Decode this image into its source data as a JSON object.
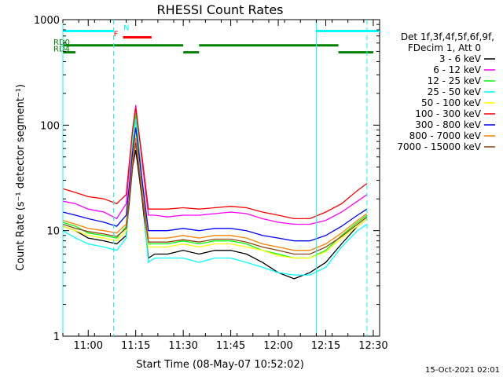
{
  "chart_data": {
    "type": "line",
    "title": "RHESSI Count Rates",
    "xlabel": "Start Time (08-May-07 10:52:02)",
    "ylabel": "Count Rate (s⁻¹ detector segment⁻¹)",
    "y_scale": "log",
    "ylim": [
      1,
      1000
    ],
    "xlim": [
      "10:52",
      "12:32"
    ],
    "x_tick_labels": [
      "11:00",
      "11:15",
      "11:30",
      "11:45",
      "12:00",
      "12:15",
      "12:30"
    ],
    "y_tick_labels": [
      "1",
      "10",
      "100",
      "1000"
    ],
    "legend_header": [
      "Det 1f,3f,4f,5f,6f,9f,",
      "FDecim 1, Att 0"
    ],
    "grid": false,
    "legend_position": "right, outside plot",
    "series": [
      {
        "name": "3 - 6 keV",
        "color": "#000000",
        "x": [
          "10:52",
          "10:56",
          "11:00",
          "11:05",
          "11:09",
          "11:12",
          "11:14",
          "11:15",
          "11:17",
          "11:19",
          "11:21",
          "11:25",
          "11:30",
          "11:35",
          "11:40",
          "11:45",
          "11:50",
          "11:55",
          "12:00",
          "12:05",
          "12:10",
          "12:15",
          "12:20",
          "12:25",
          "12:28"
        ],
        "values": [
          11,
          10,
          8.5,
          8,
          7.5,
          9,
          40,
          58,
          20,
          5.5,
          6,
          6,
          6.5,
          6,
          6.5,
          6.5,
          6,
          5,
          4,
          3.5,
          4,
          5,
          7.5,
          11,
          13
        ]
      },
      {
        "name": "6 - 12 keV",
        "color": "#ff00ff",
        "x": [
          "10:52",
          "10:56",
          "11:00",
          "11:05",
          "11:09",
          "11:12",
          "11:14",
          "11:15",
          "11:17",
          "11:19",
          "11:21",
          "11:25",
          "11:30",
          "11:35",
          "11:40",
          "11:45",
          "11:50",
          "11:55",
          "12:00",
          "12:05",
          "12:10",
          "12:15",
          "12:20",
          "12:25",
          "12:28"
        ],
        "values": [
          19,
          18,
          16,
          15,
          13,
          18,
          90,
          155,
          45,
          14,
          14,
          13.5,
          14,
          14,
          14.5,
          15,
          14.5,
          13,
          12,
          11.5,
          11.5,
          12.5,
          15,
          19,
          22
        ]
      },
      {
        "name": "12 - 25 keV",
        "color": "#00ff00",
        "x": [
          "10:52",
          "10:56",
          "11:00",
          "11:05",
          "11:09",
          "11:12",
          "11:14",
          "11:15",
          "11:17",
          "11:19",
          "11:21",
          "11:25",
          "11:30",
          "11:35",
          "11:40",
          "11:45",
          "11:50",
          "11:55",
          "12:00",
          "12:05",
          "12:10",
          "12:15",
          "12:20",
          "12:25",
          "12:28"
        ],
        "values": [
          12,
          11,
          9.5,
          9,
          8.5,
          11,
          65,
          130,
          30,
          7.5,
          7.5,
          7.5,
          8,
          7.5,
          8,
          8,
          7.5,
          6.5,
          6,
          5.5,
          5.5,
          6.5,
          9,
          12,
          14
        ]
      },
      {
        "name": "25 - 50 keV",
        "color": "#00ffff",
        "x": [
          "10:52",
          "10:56",
          "11:00",
          "11:05",
          "11:09",
          "11:12",
          "11:14",
          "11:15",
          "11:17",
          "11:19",
          "11:21",
          "11:25",
          "11:30",
          "11:35",
          "11:40",
          "11:45",
          "11:50",
          "11:55",
          "12:00",
          "12:05",
          "12:10",
          "12:15",
          "12:20",
          "12:25",
          "12:28"
        ],
        "values": [
          10,
          8.5,
          7.5,
          7,
          6.5,
          8.5,
          55,
          115,
          25,
          5,
          5.5,
          5.5,
          5.5,
          5,
          5.5,
          5.5,
          5,
          4.5,
          4,
          3.8,
          3.8,
          4.5,
          7,
          10,
          11.5
        ]
      },
      {
        "name": "50 - 100 keV",
        "color": "#ffff00",
        "x": [
          "10:52",
          "10:56",
          "11:00",
          "11:05",
          "11:09",
          "11:12",
          "11:14",
          "11:15",
          "11:17",
          "11:19",
          "11:21",
          "11:25",
          "11:30",
          "11:35",
          "11:40",
          "11:45",
          "11:50",
          "11:55",
          "12:00",
          "12:05",
          "12:10",
          "12:15",
          "12:20",
          "12:25",
          "12:28"
        ],
        "values": [
          11,
          10,
          9,
          8.5,
          8,
          10,
          45,
          80,
          22,
          7,
          7,
          7,
          7.5,
          7,
          7.5,
          7.5,
          7,
          6.5,
          5.8,
          5.5,
          5.5,
          6.3,
          8.5,
          11,
          13
        ]
      },
      {
        "name": "100 - 300 keV",
        "color": "#ff0000",
        "x": [
          "10:52",
          "10:56",
          "11:00",
          "11:05",
          "11:09",
          "11:12",
          "11:14",
          "11:15",
          "11:17",
          "11:19",
          "11:21",
          "11:25",
          "11:30",
          "11:35",
          "11:40",
          "11:45",
          "11:50",
          "11:55",
          "12:00",
          "12:05",
          "12:10",
          "12:15",
          "12:20",
          "12:25",
          "12:28"
        ],
        "values": [
          25,
          23,
          21,
          20,
          18,
          22,
          90,
          145,
          50,
          16,
          16,
          16,
          16.5,
          16,
          16.5,
          17,
          16.5,
          15,
          14,
          13,
          13,
          15,
          18,
          24,
          28
        ]
      },
      {
        "name": "300 - 800 keV",
        "color": "#0000ff",
        "x": [
          "10:52",
          "10:56",
          "11:00",
          "11:05",
          "11:09",
          "11:12",
          "11:14",
          "11:15",
          "11:17",
          "11:19",
          "11:21",
          "11:25",
          "11:30",
          "11:35",
          "11:40",
          "11:45",
          "11:50",
          "11:55",
          "12:00",
          "12:05",
          "12:10",
          "12:15",
          "12:20",
          "12:25",
          "12:28"
        ],
        "values": [
          15,
          14,
          13,
          12,
          11,
          14,
          55,
          95,
          30,
          10,
          10,
          10,
          10.5,
          10,
          10.5,
          10.5,
          10,
          9,
          8.5,
          8,
          8,
          9,
          11,
          14,
          16
        ]
      },
      {
        "name": "800 - 7000 keV",
        "color": "#ff8000",
        "x": [
          "10:52",
          "10:56",
          "11:00",
          "11:05",
          "11:09",
          "11:12",
          "11:14",
          "11:15",
          "11:17",
          "11:19",
          "11:21",
          "11:25",
          "11:30",
          "11:35",
          "11:40",
          "11:45",
          "11:50",
          "11:55",
          "12:00",
          "12:05",
          "12:10",
          "12:15",
          "12:20",
          "12:25",
          "12:28"
        ],
        "values": [
          12.5,
          11.5,
          10.5,
          10,
          9.5,
          11.5,
          45,
          75,
          24,
          8.5,
          8.5,
          8.5,
          9,
          8.5,
          9,
          9,
          8.5,
          7.5,
          7,
          6.5,
          6.5,
          7.5,
          9.5,
          12.5,
          14.5
        ]
      },
      {
        "name": "7000 - 15000 keV",
        "color": "#8b4513",
        "x": [
          "10:52",
          "10:56",
          "11:00",
          "11:05",
          "11:09",
          "11:12",
          "11:14",
          "11:15",
          "11:17",
          "11:19",
          "11:21",
          "11:25",
          "11:30",
          "11:35",
          "11:40",
          "11:45",
          "11:50",
          "11:55",
          "12:00",
          "12:05",
          "12:10",
          "12:15",
          "12:20",
          "12:25",
          "12:28"
        ],
        "values": [
          11.5,
          10.5,
          9.8,
          9.3,
          8.8,
          10.5,
          40,
          68,
          21,
          7.8,
          7.8,
          7.8,
          8.2,
          7.8,
          8.3,
          8.3,
          7.8,
          7,
          6.5,
          6,
          6,
          7,
          8.8,
          11.5,
          13.5
        ]
      }
    ],
    "state_bars": [
      {
        "label": "N",
        "color": "#00ffff",
        "level": 780,
        "segments": [
          [
            "10:52",
            "11:08"
          ],
          [
            "12:12",
            "12:32"
          ]
        ]
      },
      {
        "label": "F",
        "color": "#ff0000",
        "level": 680,
        "segments": [
          [
            "11:11",
            "11:20"
          ]
        ]
      },
      {
        "label": "RD0",
        "color": "#008000",
        "level": 570,
        "segments": [
          [
            "10:52",
            "11:30"
          ],
          [
            "11:35",
            "12:19"
          ]
        ]
      },
      {
        "label": "RD4",
        "color": "#008000",
        "level": 490,
        "segments": [
          [
            "10:52",
            "10:56"
          ],
          [
            "11:30",
            "11:35"
          ],
          [
            "12:19",
            "12:30"
          ]
        ]
      }
    ],
    "vertical_lines": [
      {
        "x": "10:52",
        "style": "solid",
        "color": "#00ffff"
      },
      {
        "x": "11:08",
        "style": "dashed",
        "color": "#00ffff"
      },
      {
        "x": "12:12",
        "style": "solid",
        "color": "#00ffff"
      },
      {
        "x": "12:28",
        "style": "dashed",
        "color": "#00ffff"
      }
    ]
  },
  "footer": {
    "timestamp": "15-Oct-2021 02:01"
  }
}
